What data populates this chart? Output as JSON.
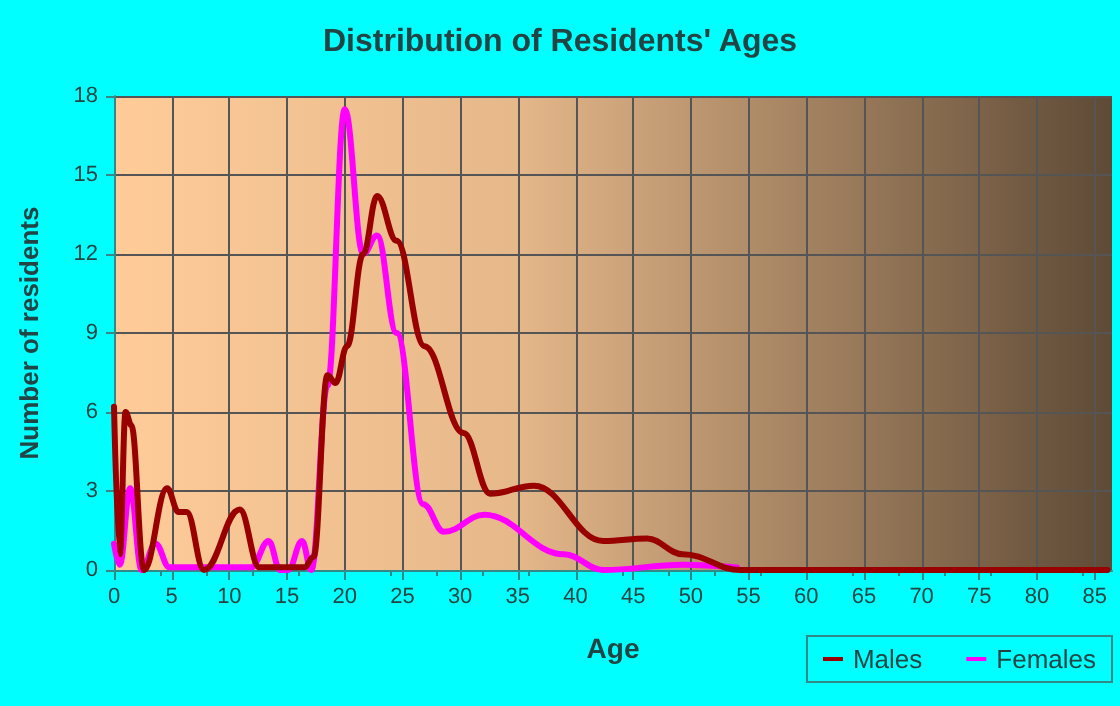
{
  "chart_data": {
    "type": "line",
    "title": "Distribution of Residents' Ages",
    "xlabel": "Age",
    "ylabel": "Number of residents",
    "xlim": [
      0,
      86.5
    ],
    "xticks": [
      0,
      5,
      10,
      15,
      20,
      25,
      30,
      35,
      40,
      45,
      50,
      55,
      60,
      65,
      70,
      75,
      80,
      85
    ],
    "ylim": [
      0,
      18
    ],
    "yticks": [
      0,
      3,
      6,
      9,
      12,
      15,
      18
    ],
    "grid": true,
    "legend": "bottom right",
    "marker": "none",
    "line_style": "solid",
    "series": [
      {
        "name": "Males",
        "color": "#990000",
        "x": [
          0,
          0.5,
          1,
          1.5,
          2.6,
          4.6,
          5.6,
          6.3,
          7.8,
          10.9,
          12.6,
          16.5,
          17.3,
          18.5,
          19.2,
          20.2,
          21.6,
          22.8,
          24.5,
          26.9,
          30.3,
          32.6,
          36.4,
          42.4,
          46.2,
          49.3,
          54.3,
          60,
          70,
          80,
          86.1
        ],
        "values": [
          6.2,
          0.6,
          6,
          5.5,
          0,
          3.1,
          2.2,
          2.2,
          0,
          2.3,
          0.1,
          0.1,
          0.5,
          7.4,
          7.1,
          8.5,
          12,
          14.2,
          12.5,
          8.5,
          5.2,
          2.9,
          3.2,
          1.1,
          1.2,
          0.6,
          0,
          0,
          0,
          0,
          0
        ]
      },
      {
        "name": "Females",
        "color": "#ff00ff",
        "x": [
          0,
          0.5,
          1.4,
          2.4,
          3.6,
          4.8,
          11.9,
          13.4,
          14.4,
          15.1,
          16.3,
          17.1,
          18.5,
          20,
          21.6,
          22.8,
          24.5,
          26.8,
          28.6,
          32.1,
          39,
          42.4,
          49.3,
          54
        ],
        "values": [
          1,
          0.2,
          3.1,
          0,
          1,
          0.1,
          0.1,
          1.1,
          0,
          0,
          1.1,
          0,
          7,
          17.5,
          12,
          12.7,
          9,
          2.5,
          1.45,
          2.1,
          0.6,
          0,
          0.2,
          0.1
        ]
      }
    ]
  }
}
